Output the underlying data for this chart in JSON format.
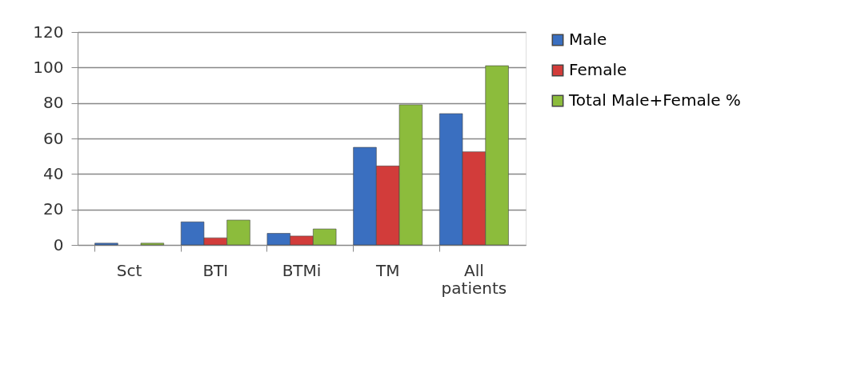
{
  "chart_data": {
    "type": "bar",
    "categories": [
      "Sct",
      "BTI",
      "BTMi",
      "TM",
      "All\npatients"
    ],
    "series": [
      {
        "name": "Male",
        "color": "#3a6fc0",
        "values": [
          1,
          13,
          6.5,
          55,
          74
        ]
      },
      {
        "name": "Female",
        "color": "#d23c3a",
        "values": [
          null,
          4,
          5,
          44.5,
          52.5
        ]
      },
      {
        "name": "Total  Male+Female %",
        "color": "#8cbc3c",
        "values": [
          1,
          14,
          9,
          79,
          101
        ]
      }
    ],
    "ylim": [
      0,
      120
    ],
    "yticks": [
      0,
      20,
      40,
      60,
      80,
      100,
      120
    ],
    "grid": "y",
    "legend": "right"
  }
}
